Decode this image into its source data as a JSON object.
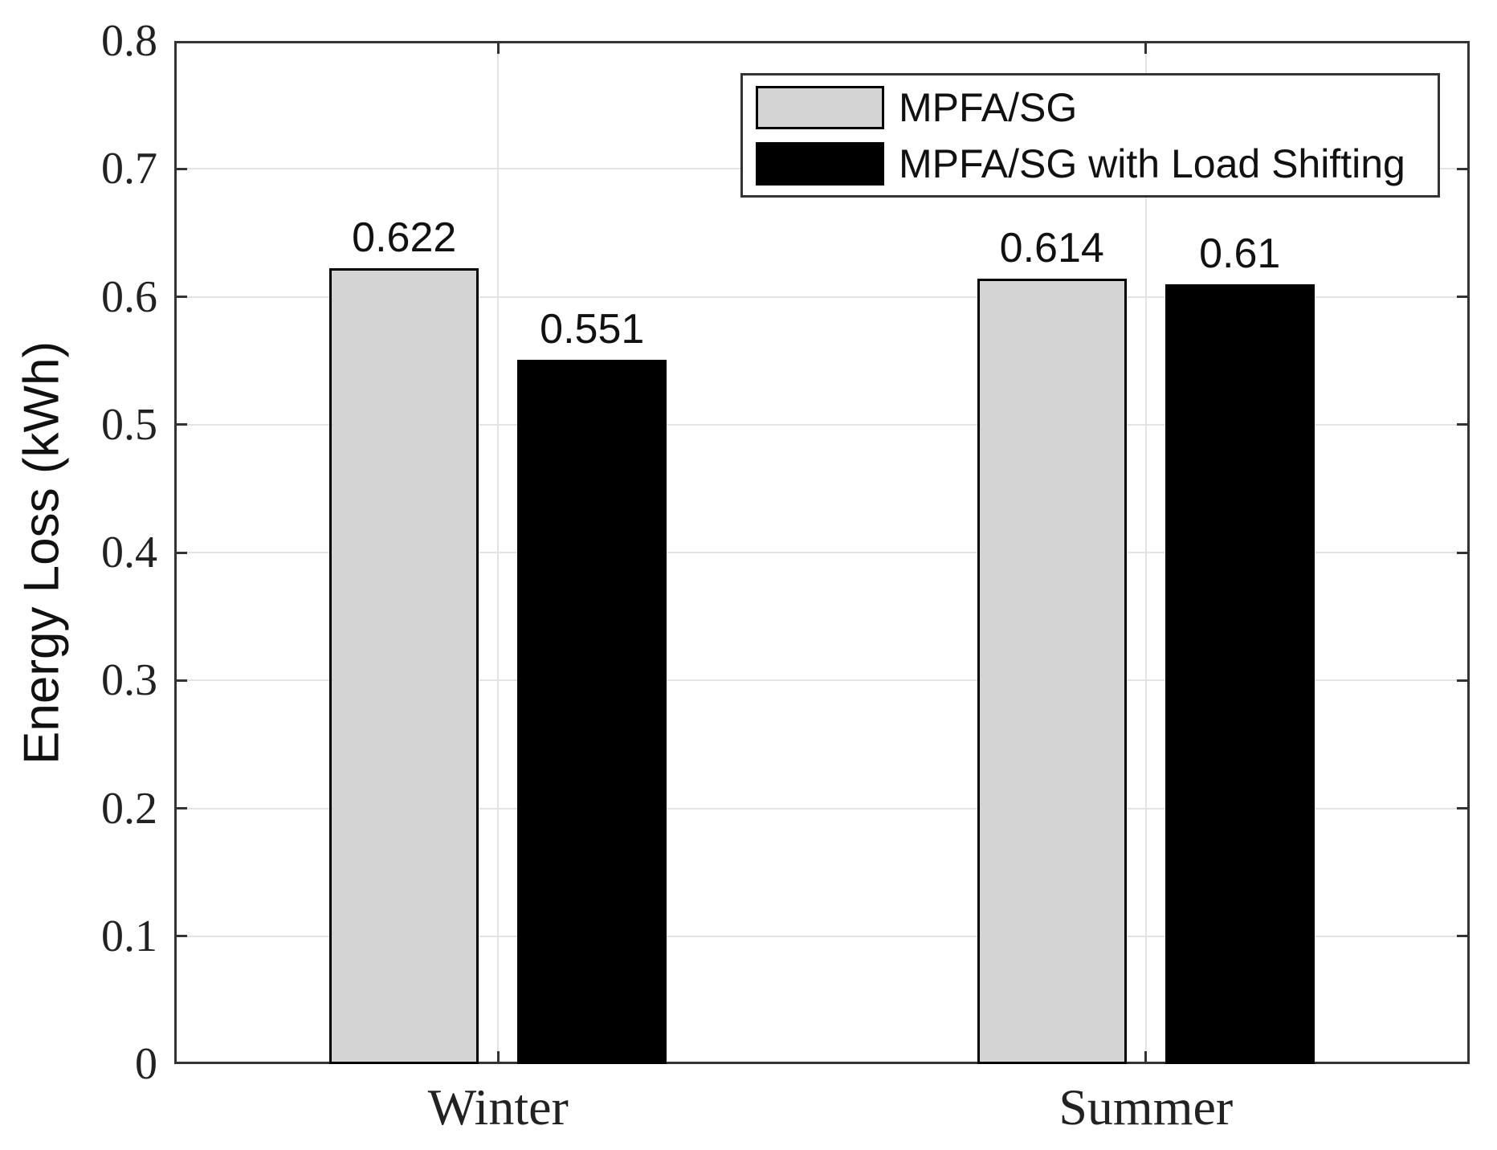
{
  "chart_data": {
    "type": "bar",
    "title": "",
    "categories": [
      "Winter",
      "Summer"
    ],
    "series": [
      {
        "name": "MPFA/SG",
        "color": "#d4d4d4",
        "edge_color": "#000000",
        "values": [
          0.622,
          0.614
        ],
        "value_labels": [
          "0.622",
          "0.614"
        ]
      },
      {
        "name": "MPFA/SG with Load Shifting",
        "color": "#000000",
        "edge_color": "#000000",
        "values": [
          0.551,
          0.61
        ],
        "value_labels": [
          "0.551",
          "0.61"
        ]
      }
    ],
    "xlabel": "",
    "ylabel": "Energy Loss (kWh)",
    "ylim": [
      0,
      0.8
    ],
    "yticks": [
      0,
      0.1,
      0.2,
      0.3,
      0.4,
      0.5,
      0.6,
      0.7,
      0.8
    ],
    "ytick_labels": [
      "0",
      "0.1",
      "0.2",
      "0.3",
      "0.4",
      "0.5",
      "0.6",
      "0.7",
      "0.8"
    ],
    "grid": true,
    "legend_position": "top-right",
    "colors": {
      "axis": "#333333",
      "grid": "#e3e3e3",
      "text": "#222222",
      "background": "#ffffff"
    }
  }
}
